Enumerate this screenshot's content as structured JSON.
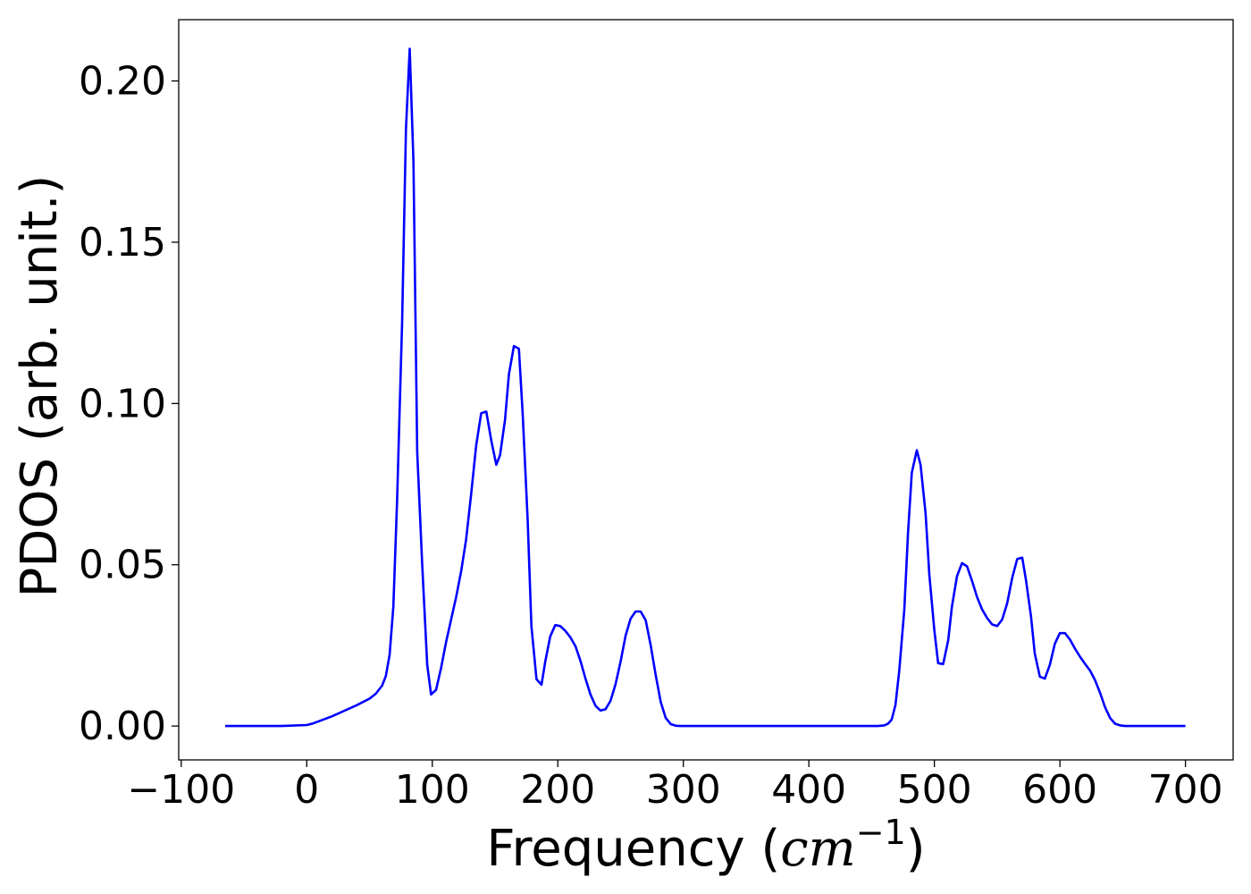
{
  "chart_data": {
    "type": "line",
    "title": "",
    "xlabel": {
      "prefix": "Frequency (",
      "italic": "cm",
      "sup": "−1",
      "suffix": ")"
    },
    "ylabel": "PDOS (arb. unit.)",
    "xlim": [
      -102,
      738
    ],
    "ylim": [
      -0.0105,
      0.219
    ],
    "xticks": [
      -100,
      0,
      100,
      200,
      300,
      400,
      500,
      600,
      700
    ],
    "xtick_labels": [
      "−100",
      "0",
      "100",
      "200",
      "300",
      "400",
      "500",
      "600",
      "700"
    ],
    "yticks": [
      0.0,
      0.05,
      0.1,
      0.15,
      0.2
    ],
    "ytick_labels": [
      "0.00",
      "0.05",
      "0.10",
      "0.15",
      "0.20"
    ],
    "grid": false,
    "series": [
      {
        "color": "#0000ff",
        "x": [
          -65,
          -20,
          0,
          5,
          20,
          40,
          50,
          55,
          60,
          63,
          66,
          69,
          72,
          76,
          79,
          82,
          85,
          88,
          92,
          96,
          99,
          103,
          107,
          111,
          115,
          119,
          123,
          127,
          131,
          135,
          139,
          143,
          147,
          151,
          154,
          158,
          161,
          165,
          169,
          172,
          176,
          179,
          183,
          187,
          190,
          194,
          198,
          202,
          206,
          210,
          214,
          218,
          222,
          226,
          230,
          234,
          238,
          242,
          246,
          250,
          254,
          258,
          262,
          266,
          270,
          274,
          278,
          282,
          286,
          290,
          294,
          298,
          302,
          310,
          350,
          400,
          455,
          460,
          463,
          466,
          469,
          472,
          476,
          479,
          482,
          486,
          489,
          493,
          496,
          500,
          503,
          507,
          511,
          514,
          518,
          522,
          526,
          530,
          534,
          538,
          542,
          546,
          550,
          554,
          558,
          562,
          566,
          570,
          573,
          577,
          580,
          584,
          588,
          592,
          596,
          600,
          604,
          608,
          612,
          616,
          620,
          624,
          628,
          632,
          636,
          640,
          644,
          648,
          652,
          660,
          700
        ],
        "y": [
          0.0,
          0.0,
          0.0003,
          0.0008,
          0.003,
          0.0065,
          0.0085,
          0.01,
          0.0125,
          0.0155,
          0.022,
          0.037,
          0.07,
          0.125,
          0.185,
          0.21,
          0.175,
          0.085,
          0.05,
          0.019,
          0.0098,
          0.0112,
          0.018,
          0.026,
          0.033,
          0.04,
          0.048,
          0.058,
          0.072,
          0.087,
          0.097,
          0.0975,
          0.0885,
          0.081,
          0.084,
          0.095,
          0.109,
          0.1178,
          0.117,
          0.097,
          0.064,
          0.031,
          0.0145,
          0.0128,
          0.02,
          0.0278,
          0.0313,
          0.031,
          0.0295,
          0.0275,
          0.0248,
          0.0203,
          0.0148,
          0.0098,
          0.0063,
          0.0048,
          0.0052,
          0.0078,
          0.013,
          0.02,
          0.028,
          0.0333,
          0.0355,
          0.0355,
          0.0328,
          0.025,
          0.0158,
          0.0075,
          0.0025,
          0.0006,
          0.0001,
          0.0,
          0.0,
          0.0,
          0.0,
          0.0,
          0.0,
          0.0002,
          0.0007,
          0.002,
          0.0065,
          0.017,
          0.036,
          0.06,
          0.0785,
          0.0855,
          0.081,
          0.066,
          0.047,
          0.0295,
          0.0195,
          0.0192,
          0.0265,
          0.037,
          0.0465,
          0.0505,
          0.0495,
          0.045,
          0.04,
          0.0362,
          0.0335,
          0.0315,
          0.031,
          0.033,
          0.038,
          0.046,
          0.0518,
          0.0522,
          0.0452,
          0.034,
          0.0225,
          0.0153,
          0.0147,
          0.019,
          0.0255,
          0.0288,
          0.0288,
          0.0268,
          0.024,
          0.0215,
          0.0193,
          0.0172,
          0.0142,
          0.0103,
          0.0058,
          0.0025,
          0.0007,
          0.0002,
          0.0,
          0.0,
          0.0
        ]
      }
    ]
  }
}
